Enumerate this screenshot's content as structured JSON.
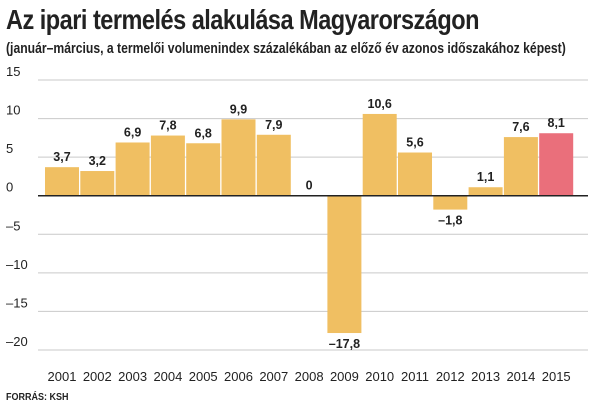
{
  "title": "Az ipari termelés alakulása Magyarországon",
  "subtitle": "(január–március, a termelői volumenindex százalékában az előző év azonos időszakához képest)",
  "source": "FORRÁS: KSH",
  "colors": {
    "bar": "#f0bf62",
    "highlight": "#ea6f7b",
    "axis": "#222222",
    "grid": "#c9c9c9",
    "label": "#222222",
    "background": "#ffffff"
  },
  "chart_data": {
    "type": "bar",
    "title": "Az ipari termelés alakulása Magyarországon",
    "subtitle": "(január–március, a termelői volumenindex százalékában az előző év azonos időszakához képest)",
    "xlabel": "",
    "ylabel": "",
    "categories": [
      "2001",
      "2002",
      "2003",
      "2004",
      "2005",
      "2006",
      "2007",
      "2008",
      "2009",
      "2010",
      "2011",
      "2012",
      "2013",
      "2014",
      "2015"
    ],
    "values": [
      3.7,
      3.2,
      6.9,
      7.8,
      6.8,
      9.9,
      7.9,
      0,
      -17.8,
      10.6,
      5.6,
      -1.8,
      1.1,
      7.6,
      8.1
    ],
    "value_labels": [
      "3,7",
      "3,2",
      "6,9",
      "7,8",
      "6,8",
      "9,9",
      "7,9",
      "0",
      "–17,8",
      "10,6",
      "5,6",
      "–1,8",
      "1,1",
      "7,6",
      "8,1"
    ],
    "highlight_category": "2015",
    "ylim": [
      -20,
      15
    ],
    "yticks": [
      15,
      10,
      5,
      0,
      -5,
      -10,
      -15,
      -20
    ],
    "ytick_labels": [
      "15",
      "10",
      "5",
      "0",
      "–5",
      "–10",
      "–15",
      "–20"
    ],
    "grid": true,
    "legend": "none"
  }
}
